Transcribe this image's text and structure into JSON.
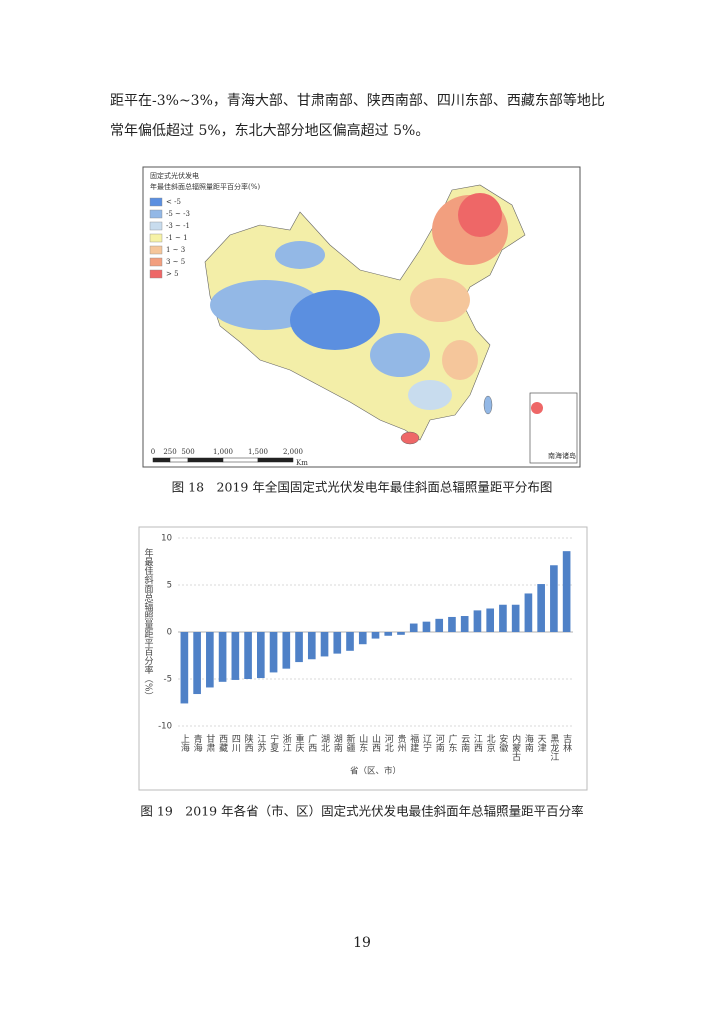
{
  "paragraph": [
    "距平在-3%~3%，青海大部、甘肃南部、陕西南部、四川东部、西藏东部等地比",
    "常年偏低超过 5%，东北大部分地区偏高超过 5%。"
  ],
  "map": {
    "title": [
      "固定式光伏发电",
      "年最佳斜面总辐照量距平百分率(%)"
    ],
    "legend": [
      {
        "label": "< -5",
        "color": "#5b8fe0"
      },
      {
        "label": "-5 ~ -3",
        "color": "#93b8e6"
      },
      {
        "label": "-3 ~ -1",
        "color": "#c8dcee"
      },
      {
        "label": "-1 ~ 1",
        "color": "#f6f2a6"
      },
      {
        "label": "1 ~ 3",
        "color": "#f5c69b"
      },
      {
        "label": "3 ~ 5",
        "color": "#f29f7f"
      },
      {
        "label": "> 5",
        "color": "#ee6767"
      }
    ],
    "scale_labels": [
      "0",
      "250",
      "500",
      "1,000",
      "1,500",
      "2,000"
    ],
    "scale_unit": "Km",
    "inset_label": "南海诸岛"
  },
  "figure18_caption": "图 18　2019 年全国固定式光伏发电年最佳斜面总辐照量距平分布图",
  "chart_data": {
    "type": "bar",
    "y_label": "年最佳斜面总辐照量距平百分率（%）",
    "x_label": "省（区、市）",
    "categories": [
      "上海",
      "青海",
      "甘肃",
      "西藏",
      "四川",
      "陕西",
      "江苏",
      "宁夏",
      "浙江",
      "重庆",
      "广西",
      "湖北",
      "湖南",
      "新疆",
      "山东",
      "山西",
      "河北",
      "贵州",
      "福建",
      "辽宁",
      "河南",
      "广东",
      "云南",
      "江西",
      "北京",
      "安徽",
      "内蒙古",
      "海南",
      "天津",
      "黑龙江",
      "吉林"
    ],
    "values": [
      -7.6,
      -6.6,
      -5.9,
      -5.3,
      -5.1,
      -5.0,
      -4.9,
      -4.3,
      -3.9,
      -3.2,
      -2.9,
      -2.6,
      -2.3,
      -2.0,
      -1.3,
      -0.7,
      -0.4,
      -0.3,
      0.9,
      1.1,
      1.4,
      1.6,
      1.7,
      2.3,
      2.5,
      2.9,
      2.9,
      4.1,
      5.1,
      7.1,
      8.6
    ],
    "color": "#4f81c7",
    "ylim": [
      -10,
      10
    ],
    "yticks": [
      -10,
      -5,
      0,
      5,
      10
    ],
    "grid": true
  },
  "figure19_caption": "图 19　2019 年各省（市、区）固定式光伏发电最佳斜面年总辐照量距平百分率",
  "page_number": "19"
}
